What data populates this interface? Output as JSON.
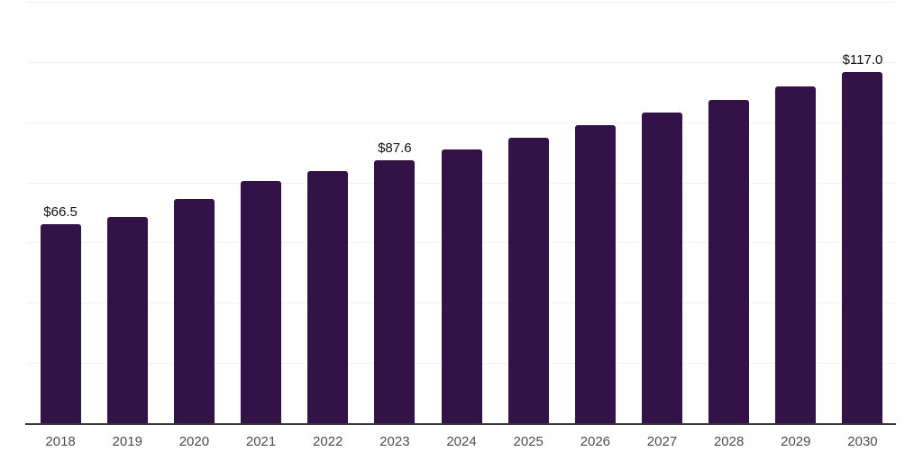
{
  "chart_data": {
    "type": "bar",
    "title": "",
    "categories": [
      "2018",
      "2019",
      "2020",
      "2021",
      "2022",
      "2023",
      "2024",
      "2025",
      "2026",
      "2027",
      "2028",
      "2029",
      "2030"
    ],
    "values": [
      66.5,
      68.9,
      74.8,
      80.8,
      84.1,
      87.6,
      91.3,
      95.2,
      99.2,
      103.4,
      107.7,
      112.3,
      117.0
    ],
    "value_labels": [
      "$66.5",
      "",
      "",
      "",
      "",
      "$87.6",
      "",
      "",
      "",
      "",
      "",
      "",
      "$117.0"
    ],
    "xlabel": "",
    "ylabel": "",
    "ylim": [
      0,
      140
    ],
    "grid_step": 20,
    "grid": true,
    "legend": false,
    "colors": {
      "bar": "#331247",
      "gridline": "#f2f2f2",
      "axis": "#37373f",
      "x_label": "#4d4d4d",
      "value_label": "#111111",
      "background": "#ffffff"
    }
  }
}
